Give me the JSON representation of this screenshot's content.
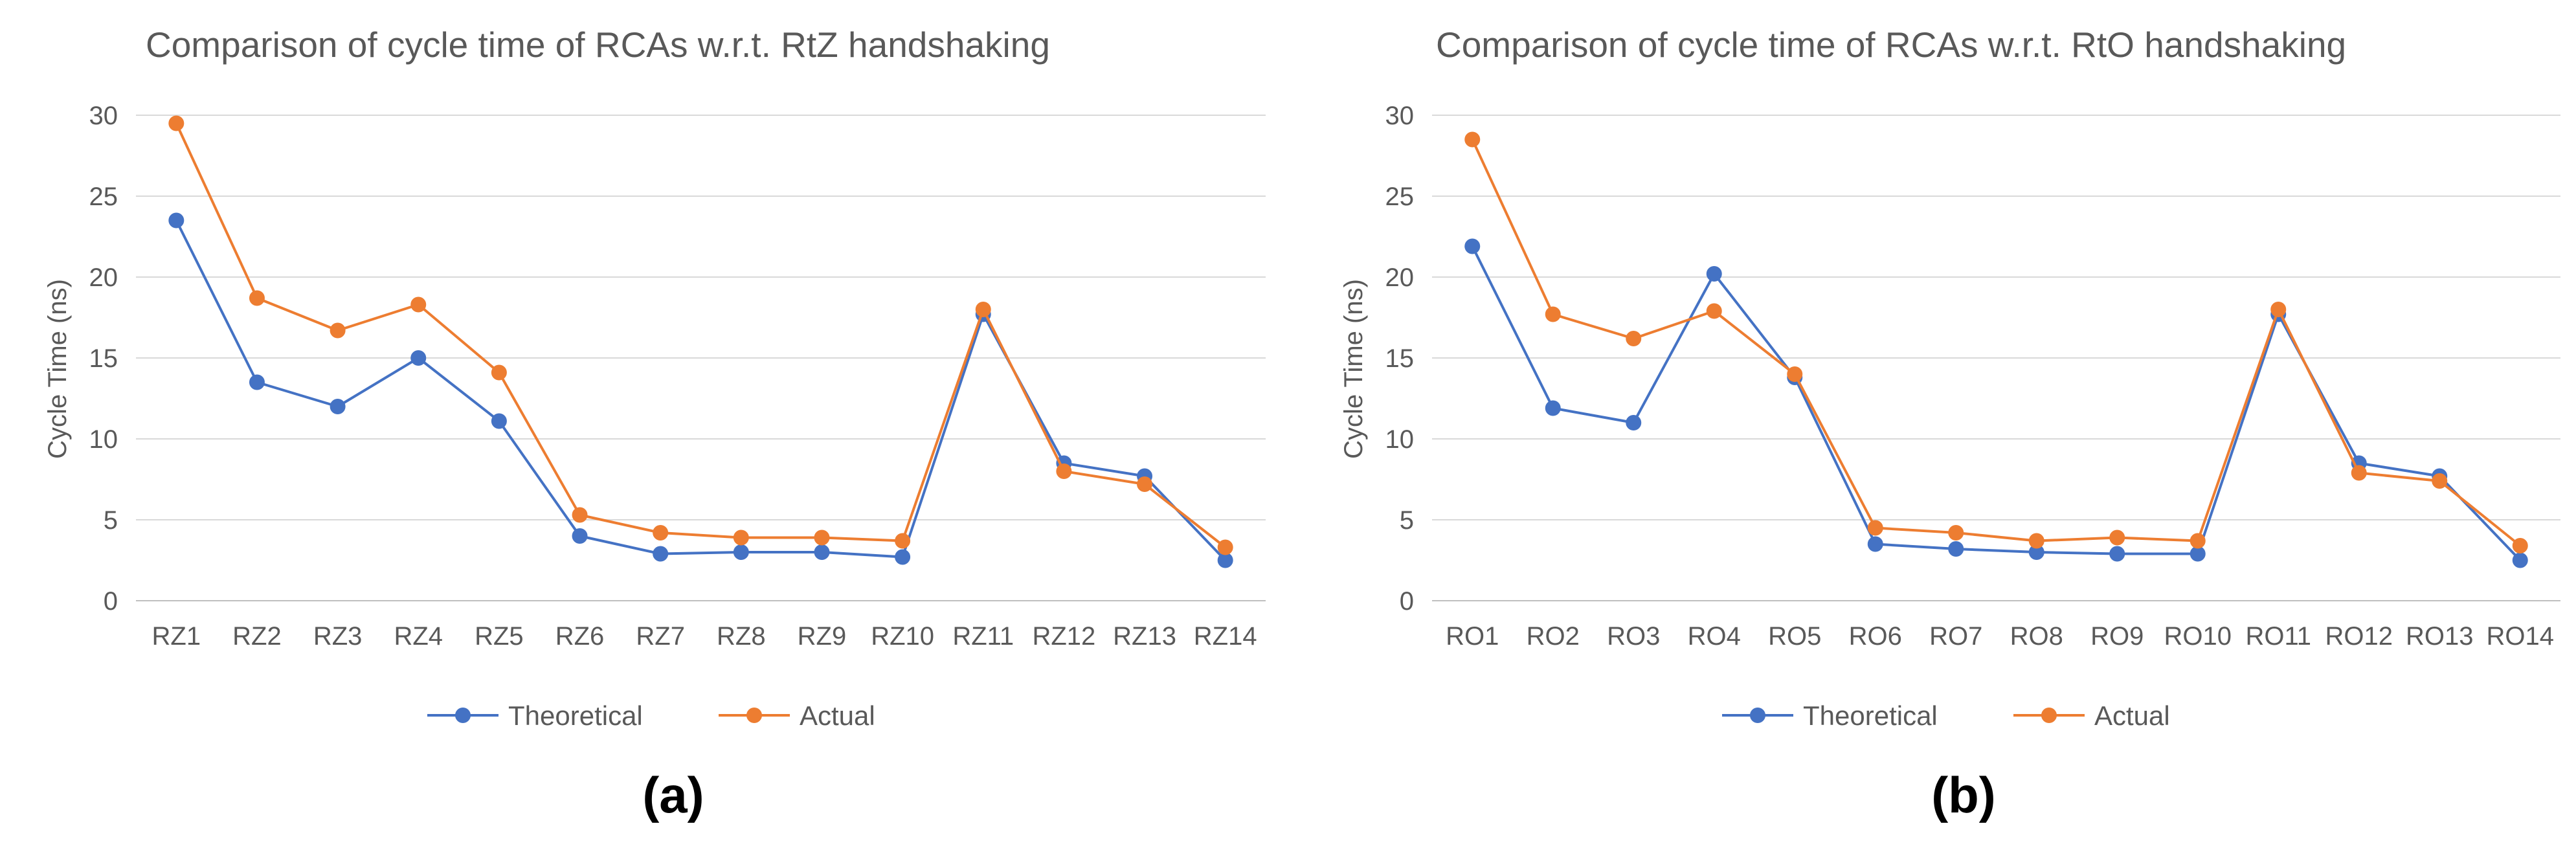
{
  "colors": {
    "theoretical": "#4472c4",
    "actual": "#ed7d31"
  },
  "chart_data": [
    {
      "type": "line",
      "title": "Comparison of cycle time of RCAs w.r.t. RtZ handshaking",
      "xlabel": "",
      "ylabel": "Cycle Time (ns)",
      "ylim": [
        0,
        30
      ],
      "yticks": [
        0,
        5,
        10,
        15,
        20,
        25,
        30
      ],
      "grid": true,
      "legend_position": "bottom",
      "panel_label": "(a)",
      "categories": [
        "RZ1",
        "RZ2",
        "RZ3",
        "RZ4",
        "RZ5",
        "RZ6",
        "RZ7",
        "RZ8",
        "RZ9",
        "RZ10",
        "RZ11",
        "RZ12",
        "RZ13",
        "RZ14"
      ],
      "series": [
        {
          "name": "Theoretical",
          "color_key": "theoretical",
          "values": [
            23.5,
            13.5,
            12.0,
            15.0,
            11.1,
            4.0,
            2.9,
            3.0,
            3.0,
            2.7,
            17.7,
            8.5,
            7.7,
            2.5
          ]
        },
        {
          "name": "Actual",
          "color_key": "actual",
          "values": [
            29.5,
            18.7,
            16.7,
            18.3,
            14.1,
            5.3,
            4.2,
            3.9,
            3.9,
            3.7,
            18.0,
            8.0,
            7.2,
            3.3
          ]
        }
      ]
    },
    {
      "type": "line",
      "title": "Comparison of cycle time of RCAs w.r.t. RtO handshaking",
      "xlabel": "",
      "ylabel": "Cycle Time (ns)",
      "ylim": [
        0,
        30
      ],
      "yticks": [
        0,
        5,
        10,
        15,
        20,
        25,
        30
      ],
      "grid": true,
      "legend_position": "bottom",
      "panel_label": "(b)",
      "categories": [
        "RO1",
        "RO2",
        "RO3",
        "RO4",
        "RO5",
        "RO6",
        "RO7",
        "RO8",
        "RO9",
        "RO10",
        "RO11",
        "RO12",
        "RO13",
        "RO14"
      ],
      "series": [
        {
          "name": "Theoretical",
          "color_key": "theoretical",
          "values": [
            21.9,
            11.9,
            11.0,
            20.2,
            13.8,
            3.5,
            3.2,
            3.0,
            2.9,
            2.9,
            17.7,
            8.5,
            7.7,
            2.5
          ]
        },
        {
          "name": "Actual",
          "color_key": "actual",
          "values": [
            28.5,
            17.7,
            16.2,
            17.9,
            14.0,
            4.5,
            4.2,
            3.7,
            3.9,
            3.7,
            18.0,
            7.9,
            7.4,
            3.4
          ]
        }
      ]
    }
  ]
}
